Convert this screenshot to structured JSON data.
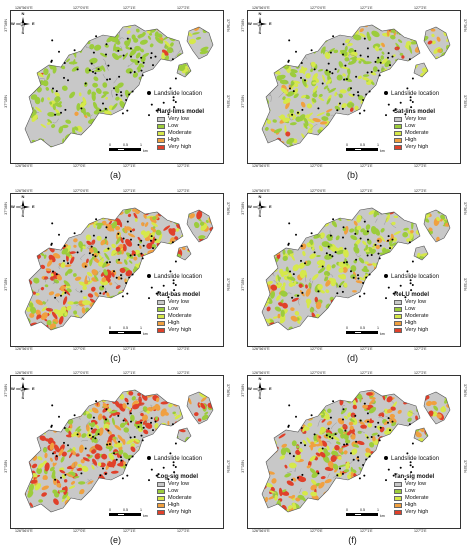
{
  "colors": {
    "very_low": "#c8c8c8",
    "low": "#9ccc3c",
    "moderate": "#d6e84a",
    "high": "#f0a040",
    "very_high": "#e0402a",
    "outline": "#555555"
  },
  "ticks": {
    "top": [
      "126°56'0\"E",
      "127°0'0\"E",
      "127°1'E",
      "127°2'E"
    ],
    "bottom": [
      "126°56'0\"E",
      "127°0'E",
      "127°1'E",
      "127°2'E"
    ],
    "left": [
      "37°35'N",
      "37°36'N"
    ],
    "right": [
      "37°35'N",
      "37°36'N"
    ]
  },
  "north_arrow": {
    "n": "N",
    "s": "S",
    "e": "E",
    "w": "W"
  },
  "scale": {
    "labels": [
      "0",
      "0.5",
      "1"
    ],
    "unit": "km"
  },
  "legend": {
    "location_label": "Landslide location",
    "items": [
      "Very low",
      "Low",
      "Moderate",
      "High",
      "Very high"
    ]
  },
  "panels": [
    {
      "model": "Hard-lims model",
      "caption": "(a)",
      "mix": [
        0.45,
        0.4,
        0.1,
        0.04,
        0.01
      ]
    },
    {
      "model": "Sat-lins model",
      "caption": "(b)",
      "mix": [
        0.4,
        0.25,
        0.25,
        0.08,
        0.02
      ]
    },
    {
      "model": "Rad-bas model",
      "caption": "(c)",
      "mix": [
        0.3,
        0.15,
        0.15,
        0.2,
        0.2
      ]
    },
    {
      "model": "ReLU model",
      "caption": "(d)",
      "mix": [
        0.35,
        0.25,
        0.22,
        0.12,
        0.06
      ]
    },
    {
      "model": "Log-sig model",
      "caption": "(e)",
      "mix": [
        0.3,
        0.15,
        0.15,
        0.18,
        0.22
      ]
    },
    {
      "model": "Tan-sig model",
      "caption": "(f)",
      "mix": [
        0.3,
        0.15,
        0.15,
        0.18,
        0.22
      ]
    }
  ]
}
